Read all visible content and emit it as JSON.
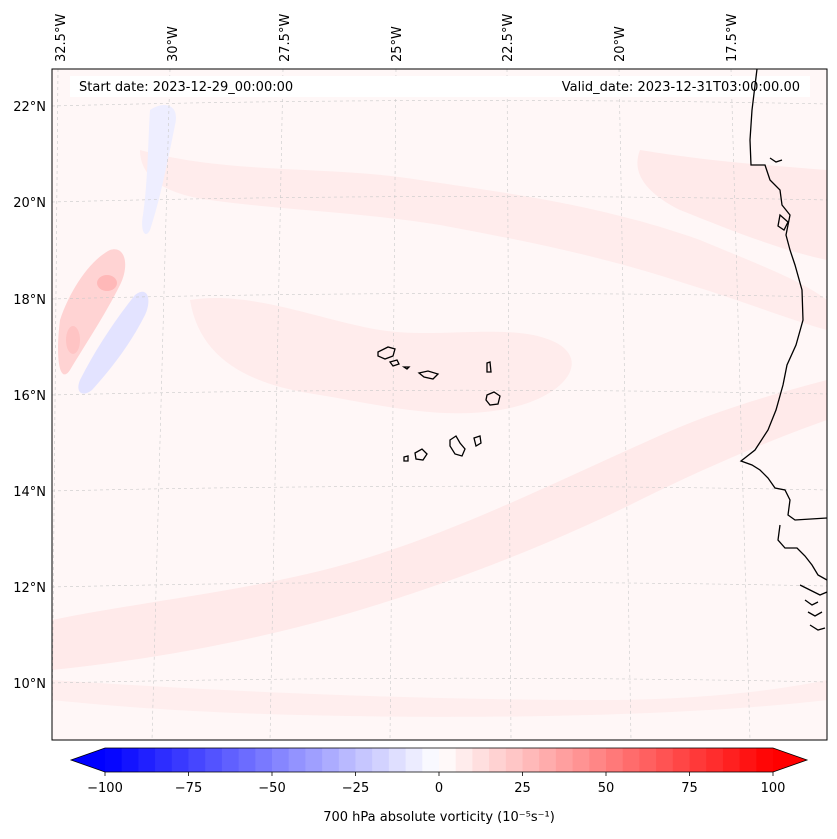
{
  "header": {
    "start_date": "Start date: 2023-12-29_00:00:00",
    "valid_date": "Valid_date: 2023-12-31T03:00:00.00"
  },
  "map": {
    "longitude_labels": [
      "32.5°W",
      "30°W",
      "27.5°W",
      "25°W",
      "22.5°W",
      "20°W",
      "17.5°W"
    ],
    "latitude_labels": [
      "22°N",
      "20°N",
      "18°N",
      "16°N",
      "14°N",
      "12°N",
      "10°N"
    ],
    "field": "700 hPa absolute vorticity"
  },
  "colorbar": {
    "label": "700 hPa absolute vorticity (10⁻⁵s⁻¹)",
    "ticks": [
      "−100",
      "−75",
      "−50",
      "−25",
      "0",
      "25",
      "50",
      "75",
      "100"
    ],
    "min": -100,
    "max": 100,
    "step": 5,
    "low_color": "#0000ff",
    "mid_color": "#ffffff",
    "high_color": "#ff0000"
  }
}
